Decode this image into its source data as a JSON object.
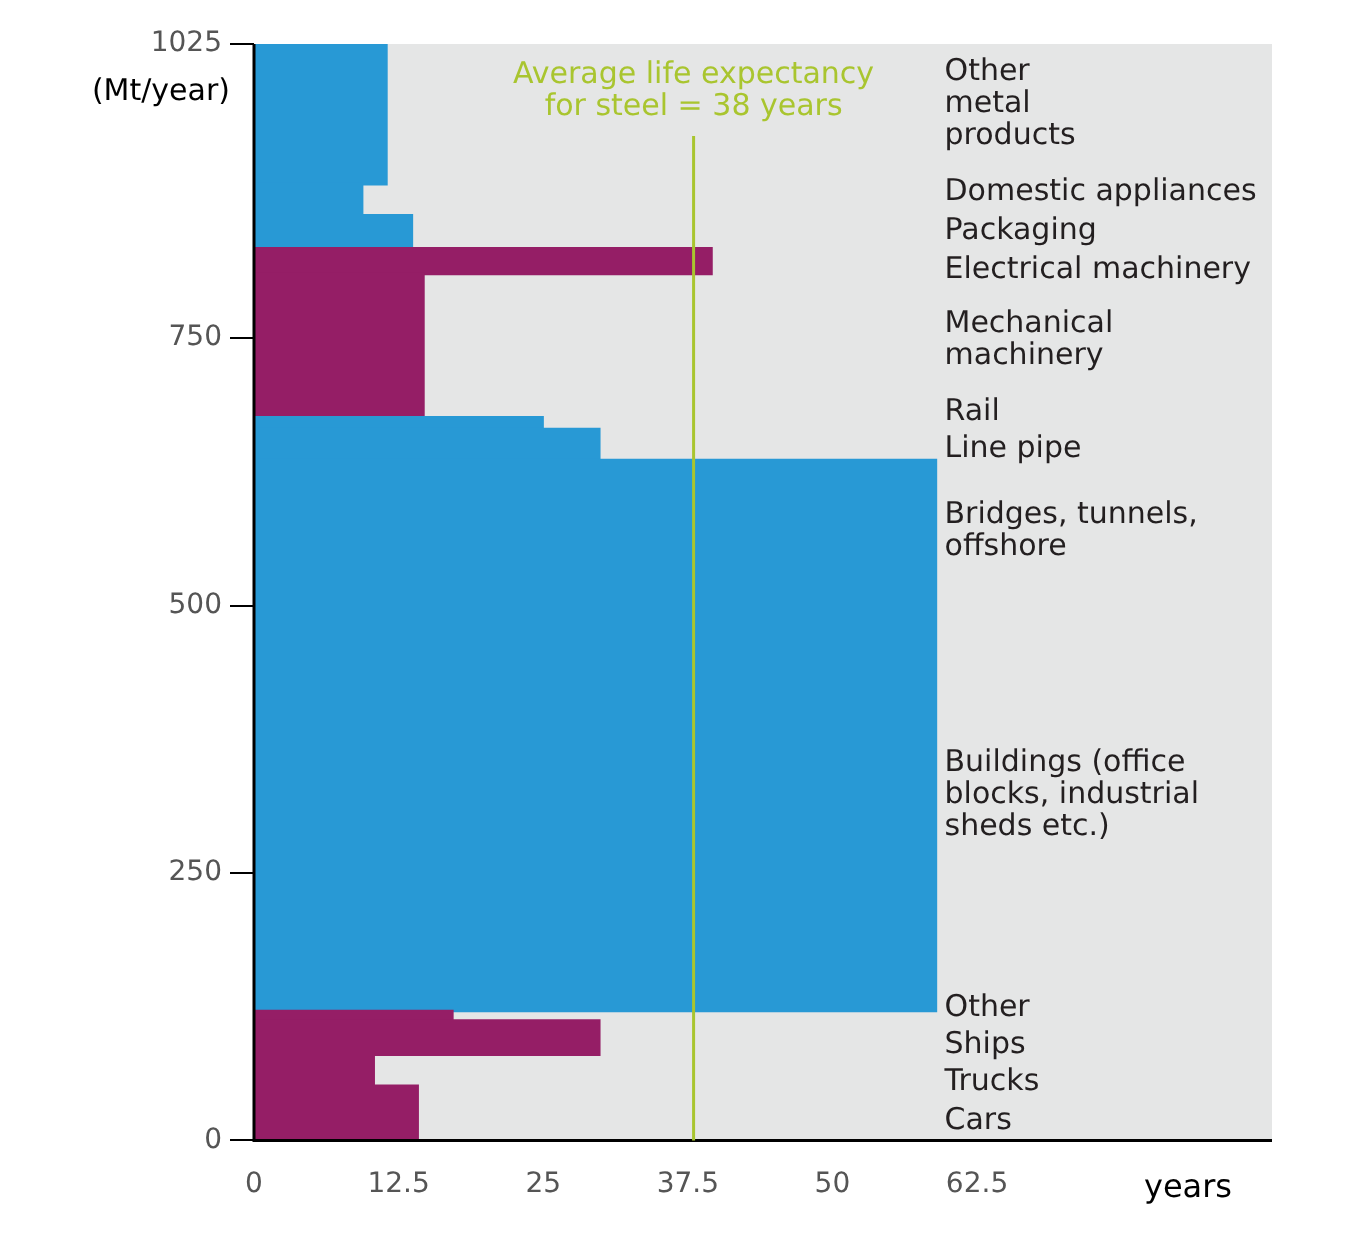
{
  "chart_data": {
    "type": "histogram",
    "orientation": "horizontal",
    "bins": [
      0,
      51,
      80,
      112,
      121,
      636,
      665,
      676,
      810,
      834,
      865,
      894,
      1025
    ],
    "values": [
      14.2,
      10.4,
      29.9,
      17.2,
      59,
      29.9,
      25,
      14.7,
      39.6,
      13.7,
      9.4,
      11.5
    ],
    "colors": [
      "#951e66",
      "#951e66",
      "#951e66",
      "#951e66",
      "#2899d5",
      "#2899d5",
      "#2899d5",
      "#951e66",
      "#951e66",
      "#2899d5",
      "#2899d5",
      "#2899d5"
    ],
    "ylim": [
      0,
      1025
    ],
    "yticks": [
      0,
      250,
      500,
      750,
      1025
    ],
    "xlim": [
      0,
      88
    ],
    "xticks": [
      0,
      12.5,
      25,
      37.5,
      50,
      62.5
    ],
    "ylabel": "(Mt/year)",
    "xlabel": "years",
    "grid": false,
    "legend": false,
    "ref_lines": [
      {
        "axis": "x",
        "value": 38,
        "label": "Average life expectancy\nfor steel = 38 years",
        "color": "#a9c52f"
      }
    ],
    "annotations": [
      "Cars",
      "Trucks",
      "Ships",
      "Other",
      "Buildings (office\nblocks, industrial\nsheds etc.)",
      "Bridges, tunnels,\noffshore",
      "Line pipe",
      "Rail",
      "Mechanical\nmachinery",
      "Electrical machinery",
      "Packaging",
      "Domestic appliances",
      "Other\nmetal\nproducts"
    ]
  }
}
